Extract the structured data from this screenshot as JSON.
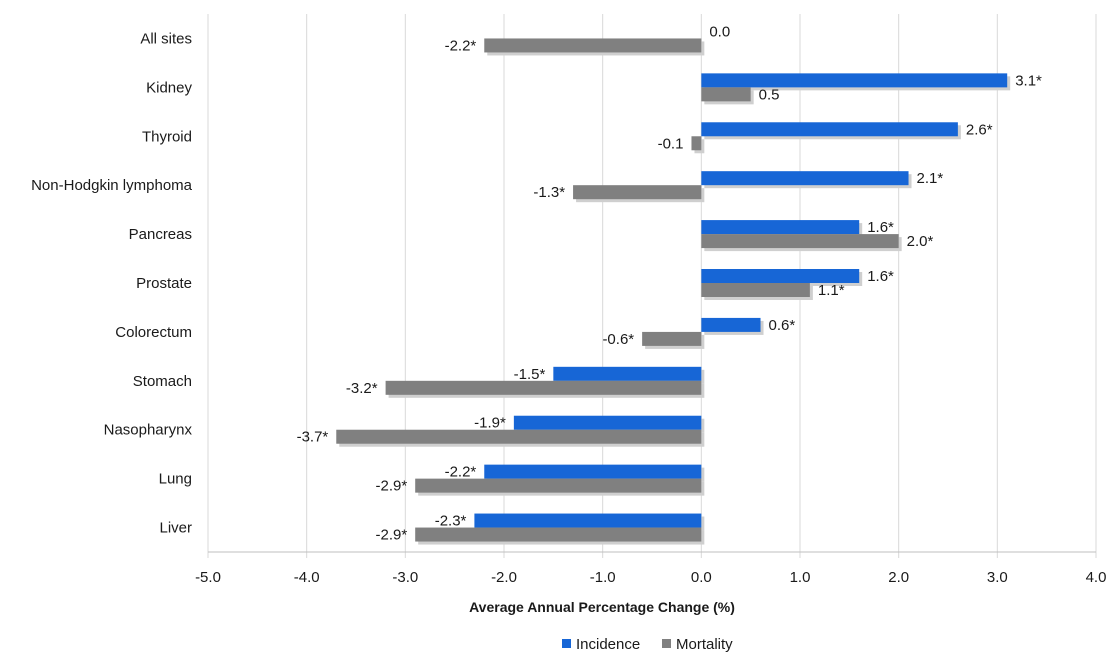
{
  "chart_data": {
    "type": "bar",
    "orientation": "horizontal",
    "categories": [
      "All sites",
      "Kidney",
      "Thyroid",
      "Non-Hodgkin lymphoma",
      "Pancreas",
      "Prostate",
      "Colorectum",
      "Stomach",
      "Nasopharynx",
      "Lung",
      "Liver"
    ],
    "series": [
      {
        "name": "Incidence",
        "color": "#1766d6",
        "values": [
          0.0,
          3.1,
          2.6,
          2.1,
          1.6,
          1.6,
          0.6,
          -1.5,
          -1.9,
          -2.2,
          -2.3
        ],
        "labels": [
          "0.0",
          "3.1*",
          "2.6*",
          "2.1*",
          "1.6*",
          "1.6*",
          "0.6*",
          "-1.5*",
          "-1.9*",
          "-2.2*",
          "-2.3*"
        ]
      },
      {
        "name": "Mortality",
        "color": "#808080",
        "values": [
          -2.2,
          0.5,
          -0.1,
          -1.3,
          2.0,
          1.1,
          -0.6,
          -3.2,
          -3.7,
          -2.9,
          -2.9
        ],
        "labels": [
          "-2.2*",
          "0.5",
          "-0.1",
          "-1.3*",
          "2.0*",
          "1.1*",
          "-0.6*",
          "-3.2*",
          "-3.7*",
          "-2.9*",
          "-2.9*"
        ]
      }
    ],
    "xlabel": "Average Annual Percentage Change (%)",
    "ylabel": "",
    "xlim": [
      -5.0,
      4.0
    ],
    "xticks": [
      "-5.0",
      "-4.0",
      "-3.0",
      "-2.0",
      "-1.0",
      "0.0",
      "1.0",
      "2.0",
      "3.0",
      "4.0"
    ],
    "grid": "vertical",
    "legend_position": "bottom"
  }
}
